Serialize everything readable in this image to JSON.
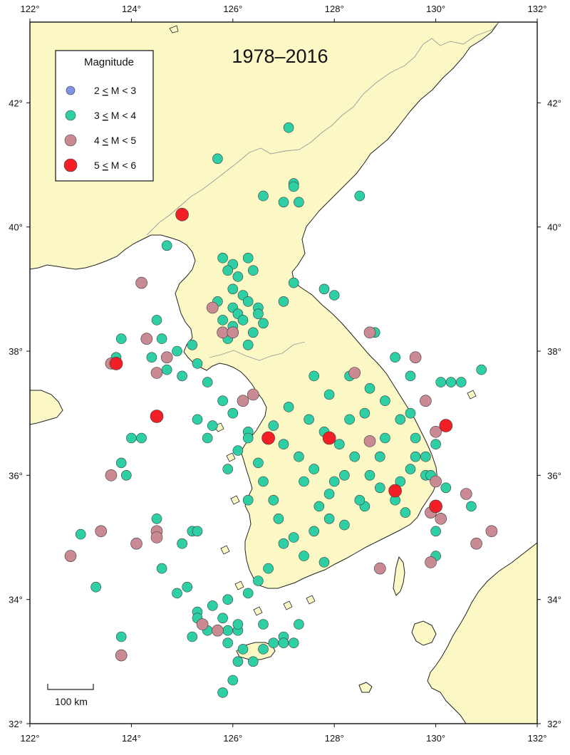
{
  "map": {
    "title": "1978–2016",
    "bounds": {
      "lon_min": 122,
      "lon_max": 132,
      "lat_min": 32,
      "lat_max": 43.3
    },
    "lon_ticks": [
      {
        "value": 122,
        "label": "122°"
      },
      {
        "value": 124,
        "label": "124°"
      },
      {
        "value": 126,
        "label": "126°"
      },
      {
        "value": 128,
        "label": "128°"
      },
      {
        "value": 130,
        "label": "130°"
      },
      {
        "value": 132,
        "label": "132°"
      }
    ],
    "lat_ticks": [
      {
        "value": 32,
        "label": "32°"
      },
      {
        "value": 34,
        "label": "34°"
      },
      {
        "value": 36,
        "label": "36°"
      },
      {
        "value": 38,
        "label": "38°"
      },
      {
        "value": 40,
        "label": "40°"
      },
      {
        "value": 42,
        "label": "42°"
      }
    ],
    "scale_bar": {
      "label": "100 km"
    },
    "colors": {
      "land": "#fcf8c6",
      "sea": "#ffffff",
      "coast": "#222222",
      "border": "#9a9a9a",
      "m2": "#7f94e6",
      "m3": "#2fcfa6",
      "m4": "#c98a93",
      "m5": "#f21f27"
    }
  },
  "legend": {
    "title": "Magnitude",
    "entries": [
      {
        "cls": "m2",
        "pre": "2 ",
        "op1": "<",
        "mid": " M ",
        "op2": "<",
        "post": " 3"
      },
      {
        "cls": "m3",
        "pre": "3 ",
        "op1": "<",
        "mid": " M ",
        "op2": "<",
        "post": " 4"
      },
      {
        "cls": "m4",
        "pre": "4 ",
        "op1": "<",
        "mid": " M ",
        "op2": "<",
        "post": " 5"
      },
      {
        "cls": "m5",
        "pre": "5 ",
        "op1": "<",
        "mid": " M ",
        "op2": "<",
        "post": " 6"
      }
    ]
  },
  "events": {
    "m5": [
      [
        125.0,
        40.2
      ],
      [
        123.7,
        37.8
      ],
      [
        124.5,
        36.95
      ],
      [
        126.7,
        36.6
      ],
      [
        127.9,
        36.6
      ],
      [
        129.2,
        35.75
      ],
      [
        130.0,
        35.5
      ],
      [
        130.2,
        36.8
      ]
    ],
    "m4": [
      [
        124.2,
        39.1
      ],
      [
        123.6,
        37.8
      ],
      [
        124.5,
        37.65
      ],
      [
        124.7,
        37.9
      ],
      [
        124.3,
        38.2
      ],
      [
        125.8,
        38.3
      ],
      [
        126.0,
        38.3
      ],
      [
        125.6,
        38.7
      ],
      [
        126.4,
        37.3
      ],
      [
        126.2,
        37.2
      ],
      [
        128.7,
        38.3
      ],
      [
        128.4,
        37.65
      ],
      [
        129.6,
        37.9
      ],
      [
        129.8,
        37.2
      ],
      [
        130.0,
        36.7
      ],
      [
        128.7,
        36.55
      ],
      [
        129.9,
        35.4
      ],
      [
        130.1,
        35.3
      ],
      [
        130.0,
        35.9
      ],
      [
        129.9,
        34.6
      ],
      [
        130.6,
        35.7
      ],
      [
        130.8,
        34.9
      ],
      [
        131.1,
        35.1
      ],
      [
        123.6,
        36.0
      ],
      [
        123.4,
        35.1
      ],
      [
        124.1,
        34.9
      ],
      [
        124.5,
        35.1
      ],
      [
        124.5,
        35.0
      ],
      [
        122.8,
        34.7
      ],
      [
        123.8,
        33.1
      ],
      [
        125.4,
        33.6
      ],
      [
        125.7,
        33.5
      ],
      [
        128.9,
        34.5
      ]
    ],
    "m3": [
      [
        127.1,
        41.6
      ],
      [
        125.7,
        41.1
      ],
      [
        127.2,
        40.7
      ],
      [
        127.2,
        40.65
      ],
      [
        127.0,
        40.4
      ],
      [
        127.3,
        40.4
      ],
      [
        126.6,
        40.5
      ],
      [
        128.5,
        40.5
      ],
      [
        124.7,
        39.7
      ],
      [
        125.8,
        39.5
      ],
      [
        126.0,
        39.4
      ],
      [
        126.3,
        39.5
      ],
      [
        125.9,
        39.3
      ],
      [
        126.1,
        39.2
      ],
      [
        126.4,
        39.3
      ],
      [
        126.0,
        39.0
      ],
      [
        126.2,
        38.9
      ],
      [
        125.7,
        38.8
      ],
      [
        126.0,
        38.7
      ],
      [
        126.3,
        38.8
      ],
      [
        126.1,
        38.6
      ],
      [
        125.8,
        38.5
      ],
      [
        126.5,
        38.7
      ],
      [
        126.2,
        38.5
      ],
      [
        126.4,
        38.3
      ],
      [
        126.6,
        38.45
      ],
      [
        125.9,
        38.2
      ],
      [
        126.3,
        38.1
      ],
      [
        127.2,
        39.1
      ],
      [
        127.0,
        38.8
      ],
      [
        127.8,
        39.0
      ],
      [
        128.0,
        38.9
      ],
      [
        128.8,
        38.3
      ],
      [
        124.5,
        38.5
      ],
      [
        124.6,
        38.2
      ],
      [
        124.9,
        38.0
      ],
      [
        125.2,
        38.1
      ],
      [
        124.4,
        37.9
      ],
      [
        124.7,
        37.7
      ],
      [
        125.0,
        37.6
      ],
      [
        125.3,
        37.8
      ],
      [
        123.7,
        37.9
      ],
      [
        123.8,
        38.2
      ],
      [
        125.5,
        37.5
      ],
      [
        125.8,
        37.2
      ],
      [
        126.0,
        37.0
      ],
      [
        125.6,
        36.8
      ],
      [
        126.3,
        36.7
      ],
      [
        126.1,
        36.4
      ],
      [
        125.9,
        36.1
      ],
      [
        126.5,
        36.2
      ],
      [
        126.6,
        35.9
      ],
      [
        126.3,
        35.6
      ],
      [
        126.8,
        35.6
      ],
      [
        126.9,
        35.3
      ],
      [
        127.2,
        35.0
      ],
      [
        127.6,
        35.1
      ],
      [
        127.9,
        35.3
      ],
      [
        128.2,
        35.2
      ],
      [
        128.6,
        35.5
      ],
      [
        128.9,
        35.8
      ],
      [
        129.2,
        35.6
      ],
      [
        129.3,
        35.9
      ],
      [
        129.5,
        36.1
      ],
      [
        129.8,
        36.3
      ],
      [
        130.0,
        36.5
      ],
      [
        129.6,
        36.6
      ],
      [
        129.3,
        36.9
      ],
      [
        129.0,
        37.2
      ],
      [
        128.7,
        37.4
      ],
      [
        128.3,
        37.6
      ],
      [
        127.9,
        37.3
      ],
      [
        127.5,
        36.9
      ],
      [
        127.8,
        36.7
      ],
      [
        128.1,
        36.5
      ],
      [
        128.4,
        36.3
      ],
      [
        128.7,
        36.0
      ],
      [
        128.0,
        35.9
      ],
      [
        127.6,
        36.1
      ],
      [
        127.3,
        36.3
      ],
      [
        127.0,
        36.5
      ],
      [
        126.8,
        36.8
      ],
      [
        127.1,
        37.1
      ],
      [
        127.6,
        37.6
      ],
      [
        128.3,
        36.9
      ],
      [
        128.6,
        37.0
      ],
      [
        129.0,
        36.6
      ],
      [
        129.5,
        37.0
      ],
      [
        130.1,
        37.5
      ],
      [
        130.3,
        37.5
      ],
      [
        130.5,
        37.5
      ],
      [
        130.9,
        37.7
      ],
      [
        129.2,
        37.9
      ],
      [
        129.5,
        37.6
      ],
      [
        129.8,
        36.0
      ],
      [
        130.2,
        35.8
      ],
      [
        130.0,
        35.1
      ],
      [
        130.0,
        34.7
      ],
      [
        130.7,
        35.5
      ],
      [
        127.0,
        34.9
      ],
      [
        127.4,
        34.7
      ],
      [
        127.8,
        34.6
      ],
      [
        126.7,
        34.5
      ],
      [
        126.5,
        34.3
      ],
      [
        126.3,
        34.1
      ],
      [
        125.9,
        34.0
      ],
      [
        125.6,
        33.9
      ],
      [
        125.3,
        33.8
      ],
      [
        125.1,
        34.2
      ],
      [
        124.9,
        34.1
      ],
      [
        125.0,
        34.9
      ],
      [
        125.2,
        35.1
      ],
      [
        125.3,
        35.1
      ],
      [
        124.5,
        35.3
      ],
      [
        123.8,
        36.2
      ],
      [
        123.9,
        36.0
      ],
      [
        124.0,
        36.6
      ],
      [
        124.2,
        36.6
      ],
      [
        125.3,
        36.9
      ],
      [
        125.5,
        36.6
      ],
      [
        125.3,
        33.7
      ],
      [
        126.1,
        33.5
      ],
      [
        126.2,
        33.2
      ],
      [
        126.1,
        33.0
      ],
      [
        126.4,
        33.0
      ],
      [
        126.6,
        33.2
      ],
      [
        126.8,
        33.3
      ],
      [
        127.0,
        33.4
      ],
      [
        127.2,
        33.3
      ],
      [
        127.3,
        33.6
      ],
      [
        127.0,
        33.3
      ],
      [
        126.6,
        33.6
      ],
      [
        126.1,
        33.6
      ],
      [
        125.9,
        33.5
      ],
      [
        125.9,
        33.3
      ],
      [
        125.8,
        33.7
      ],
      [
        125.5,
        33.5
      ],
      [
        125.2,
        33.4
      ],
      [
        124.6,
        34.5
      ],
      [
        123.8,
        33.4
      ],
      [
        123.3,
        34.2
      ],
      [
        123.0,
        35.05
      ],
      [
        126.0,
        32.7
      ],
      [
        125.8,
        32.5
      ],
      [
        126.3,
        36.6
      ],
      [
        127.9,
        35.7
      ],
      [
        128.5,
        35.6
      ],
      [
        128.2,
        36.0
      ],
      [
        127.4,
        35.9
      ],
      [
        127.7,
        35.5
      ],
      [
        129.4,
        35.4
      ],
      [
        129.6,
        36.3
      ],
      [
        128.9,
        36.3
      ],
      [
        129.9,
        36.0
      ],
      [
        126.5,
        38.6
      ],
      [
        126.0,
        38.4
      ]
    ]
  }
}
